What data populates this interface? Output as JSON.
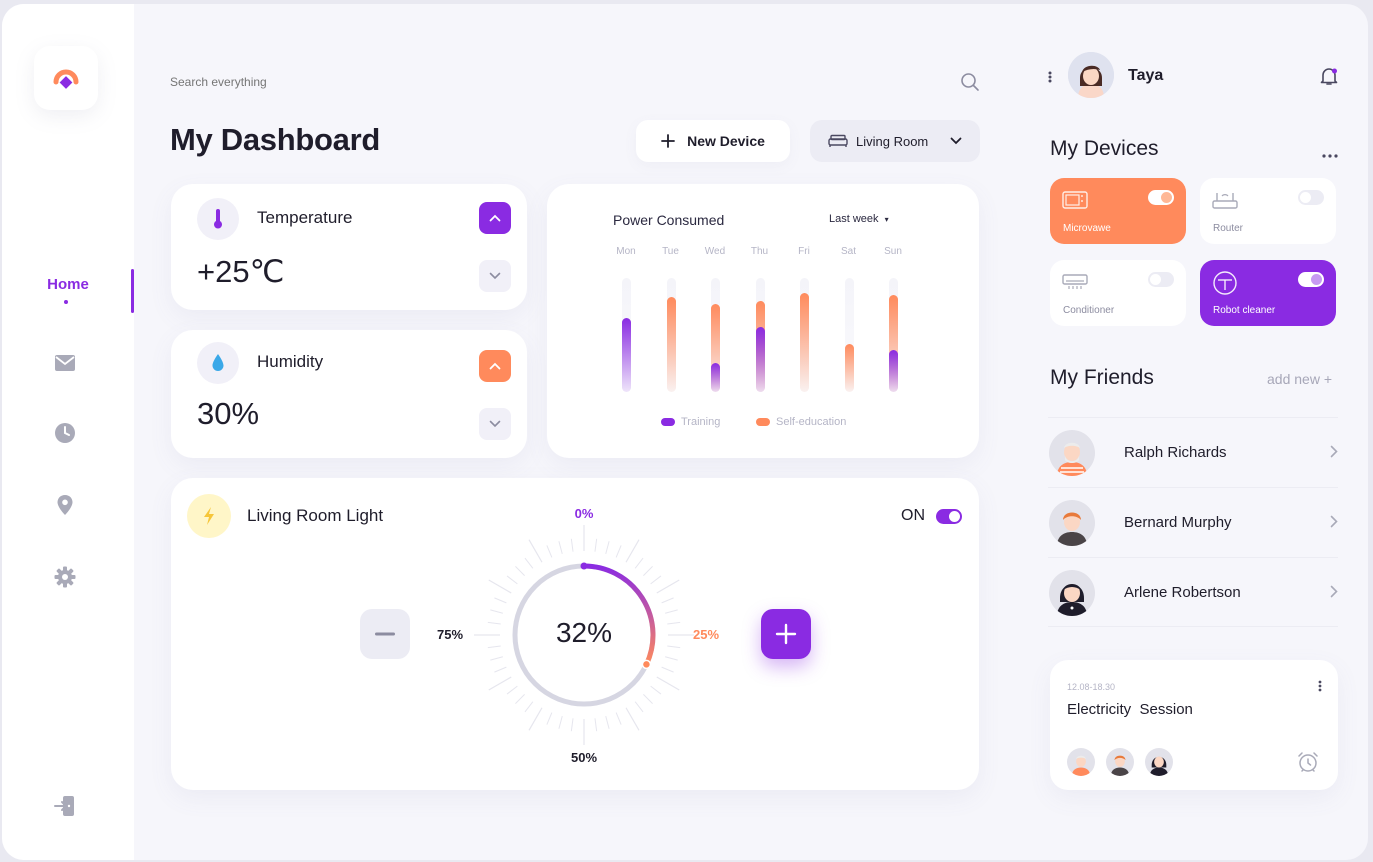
{
  "sidebar": {
    "items": [
      {
        "label": "Home",
        "icon": "home",
        "active": true
      },
      {
        "label": "",
        "icon": "mail-icon"
      },
      {
        "label": "",
        "icon": "clock-icon"
      },
      {
        "label": "",
        "icon": "location-pin-icon"
      },
      {
        "label": "",
        "icon": "gear-icon"
      }
    ],
    "logout_icon": "logout-icon"
  },
  "search": {
    "placeholder": "Search everything"
  },
  "header": {
    "title": "My Dashboard",
    "new_device_label": "New Device",
    "room_label": "Living Room"
  },
  "temperature": {
    "label": "Temperature",
    "value": "+25℃"
  },
  "humidity": {
    "label": "Humidity",
    "value": "30%"
  },
  "power": {
    "title": "Power Consumed",
    "range": "Last week",
    "days": [
      "Mon",
      "Tue",
      "Wed",
      "Thu",
      "Fri",
      "Sat",
      "Sun"
    ],
    "training": [
      0.65,
      0,
      0.25,
      0.57,
      0,
      0,
      0.37
    ],
    "self_education": [
      0,
      0.83,
      0.77,
      0.8,
      0.87,
      0.42,
      0.85
    ],
    "legend_training": "Training",
    "legend_self": "Self-education"
  },
  "light": {
    "title": "Living Room Light",
    "state_label": "ON",
    "value_label": "32%",
    "value": 32,
    "tick_top": "0%",
    "tick_right": "25%",
    "tick_bottom": "50%",
    "tick_left": "75%"
  },
  "user": {
    "name": "Taya"
  },
  "devices": {
    "title": "My Devices",
    "items": [
      {
        "name": "Microvawe",
        "on": true
      },
      {
        "name": "Router",
        "on": false
      },
      {
        "name": "Conditioner",
        "on": false
      },
      {
        "name": "Robot cleaner",
        "on": true
      }
    ]
  },
  "friends": {
    "title": "My Friends",
    "add_label": "add new +",
    "items": [
      {
        "name": "Ralph Richards"
      },
      {
        "name": "Bernard Murphy"
      },
      {
        "name": "Arlene Robertson"
      }
    ]
  },
  "session": {
    "time": "12.08-18.30",
    "title": "Electricity  Session"
  },
  "colors": {
    "purple": "#8a2be2",
    "orange": "#ff8a5c"
  }
}
